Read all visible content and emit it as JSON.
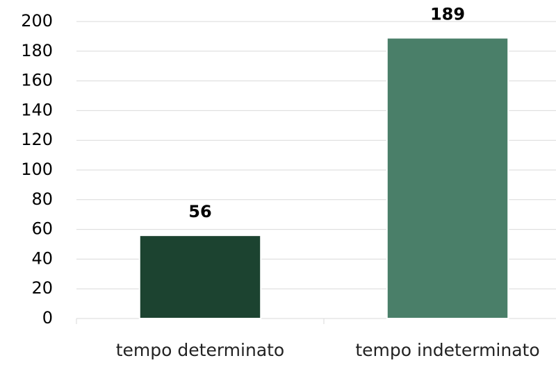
{
  "chart_data": {
    "type": "bar",
    "categories": [
      "tempo determinato",
      "tempo indeterminato"
    ],
    "values": [
      56,
      189
    ],
    "colors": [
      "#1c4330",
      "#4a7f69"
    ],
    "ylim": [
      0,
      200
    ],
    "yticks": [
      0,
      20,
      40,
      60,
      80,
      100,
      120,
      140,
      160,
      180,
      200
    ],
    "grid": true
  }
}
